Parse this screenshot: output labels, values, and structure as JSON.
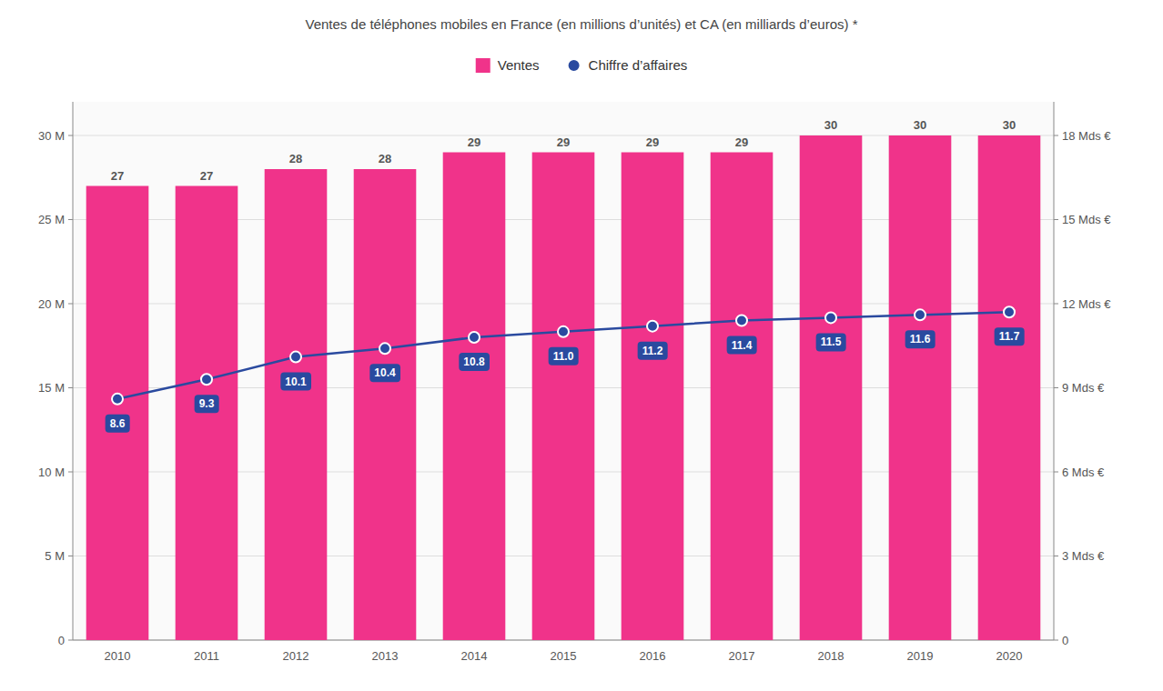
{
  "chart_data": {
    "type": "bar",
    "subtitle": "Ventes de téléphones mobiles en France (en millions d’unités) et CA (en milliards d’euros) *",
    "categories": [
      "2010",
      "2011",
      "2012",
      "2013",
      "2014",
      "2015",
      "2016",
      "2017",
      "2018",
      "2019",
      "2020"
    ],
    "series": [
      {
        "name": "Ventes",
        "type": "bar",
        "color": "#f0338a",
        "values": [
          27,
          27,
          28,
          28,
          29,
          29,
          29,
          29,
          30,
          30,
          30
        ]
      },
      {
        "name": "Chiffre d’affaires",
        "type": "line",
        "axis": "y2",
        "color": "#2a4a9f",
        "marker": "circle",
        "values": [
          8.6,
          9.3,
          10.1,
          10.4,
          10.8,
          11.0,
          11.2,
          11.4,
          11.5,
          11.6,
          11.7
        ],
        "value_labels": [
          "8.6",
          "9.3",
          "10.1",
          "10.4",
          "10.8",
          "11.0",
          "11.2",
          "11.4",
          "11.5",
          "11.6",
          "11.7"
        ]
      }
    ],
    "ylim": [
      0,
      32
    ],
    "yticks": [
      0,
      {
        "value": 5,
        "label": "5 M"
      },
      {
        "value": 10,
        "label": "10 M"
      },
      {
        "value": 15,
        "label": "15 M"
      },
      {
        "value": 20,
        "label": "20 M"
      },
      {
        "value": 25,
        "label": "25 M"
      },
      {
        "value": 30,
        "label": "30 M"
      }
    ],
    "y2lim": [
      0,
      19.2
    ],
    "y2ticks": [
      0,
      {
        "value": 3,
        "label": "3 Mds €"
      },
      {
        "value": 6,
        "label": "6 Mds €"
      },
      {
        "value": 9,
        "label": "9 Mds €"
      },
      {
        "value": 12,
        "label": "12 Mds €"
      },
      {
        "value": 15,
        "label": "15 Mds €"
      },
      {
        "value": 18,
        "label": "18 Mds €"
      }
    ],
    "grid": true,
    "legend": "top",
    "data_labels": true
  }
}
